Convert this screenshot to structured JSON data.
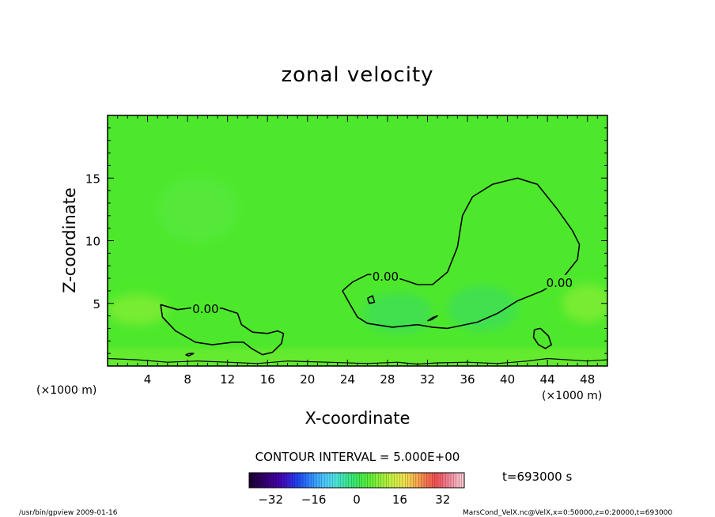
{
  "chart_data": {
    "type": "contour",
    "title": "zonal velocity",
    "xlabel": "X-coordinate",
    "ylabel": "Z-coordinate",
    "x_unit_left": "(×1000 m)",
    "x_unit_right": "(×1000 m)",
    "xlim": [
      0,
      50
    ],
    "ylim": [
      0,
      20
    ],
    "xticks": [
      "4",
      "8",
      "12",
      "16",
      "20",
      "24",
      "28",
      "32",
      "36",
      "40",
      "44",
      "48"
    ],
    "yticks": [
      "5",
      "10",
      "15"
    ],
    "contour_interval_label": "CONTOUR INTERVAL = 5.000E+00",
    "contour_level": "0.00",
    "contour_labels": [
      {
        "text": "0.00",
        "x": 9.8,
        "z": 4.6
      },
      {
        "text": "0.00",
        "x": 27.8,
        "z": 7.2
      },
      {
        "text": "0.00",
        "x": 45.2,
        "z": 6.7
      }
    ],
    "contours": [
      [
        [
          5.3,
          4.9
        ],
        [
          7.0,
          4.5
        ],
        [
          9.0,
          4.7
        ],
        [
          11.5,
          4.6
        ],
        [
          13.0,
          4.2
        ],
        [
          13.4,
          3.3
        ],
        [
          14.5,
          2.7
        ],
        [
          16.0,
          2.6
        ],
        [
          17.0,
          2.8
        ],
        [
          17.6,
          2.6
        ],
        [
          17.4,
          1.8
        ],
        [
          16.5,
          1.1
        ],
        [
          15.5,
          0.9
        ],
        [
          14.4,
          1.4
        ],
        [
          13.6,
          1.9
        ],
        [
          12.5,
          1.9
        ],
        [
          10.5,
          1.7
        ],
        [
          8.8,
          1.9
        ],
        [
          6.8,
          2.8
        ],
        [
          5.5,
          3.9
        ],
        [
          5.3,
          4.9
        ]
      ],
      [
        [
          23.5,
          6.0
        ],
        [
          24.5,
          6.7
        ],
        [
          26.0,
          7.3
        ],
        [
          27.5,
          7.3
        ],
        [
          29.5,
          6.9
        ],
        [
          31.0,
          6.5
        ],
        [
          32.5,
          6.5
        ],
        [
          34.0,
          7.5
        ],
        [
          35.0,
          9.5
        ],
        [
          35.5,
          12.0
        ],
        [
          36.5,
          13.5
        ],
        [
          38.5,
          14.5
        ],
        [
          41.0,
          15.0
        ],
        [
          43.0,
          14.5
        ],
        [
          45.0,
          12.5
        ],
        [
          46.5,
          10.8
        ],
        [
          47.2,
          9.7
        ],
        [
          47.0,
          8.5
        ],
        [
          45.5,
          7.0
        ],
        [
          43.5,
          6.0
        ],
        [
          41.0,
          5.2
        ],
        [
          39.0,
          4.2
        ],
        [
          37.0,
          3.5
        ],
        [
          34.0,
          3.0
        ],
        [
          32.5,
          3.1
        ],
        [
          31.0,
          3.3
        ],
        [
          28.5,
          3.1
        ],
        [
          26.0,
          3.4
        ],
        [
          25.0,
          3.9
        ],
        [
          24.2,
          5.0
        ],
        [
          23.5,
          6.0
        ]
      ],
      [
        [
          42.7,
          2.9
        ],
        [
          43.3,
          3.0
        ],
        [
          44.1,
          2.4
        ],
        [
          44.4,
          1.7
        ],
        [
          43.8,
          1.4
        ],
        [
          43.1,
          1.7
        ],
        [
          42.6,
          2.3
        ],
        [
          42.7,
          2.9
        ]
      ],
      [
        [
          26.0,
          5.4
        ],
        [
          26.5,
          5.6
        ],
        [
          26.7,
          5.1
        ],
        [
          26.2,
          5.0
        ],
        [
          26.0,
          5.4
        ]
      ],
      [
        [
          32.0,
          3.6
        ],
        [
          32.6,
          3.9
        ],
        [
          33.0,
          4.0
        ],
        [
          32.4,
          3.7
        ],
        [
          32.0,
          3.6
        ]
      ],
      [
        [
          7.8,
          0.9
        ],
        [
          8.2,
          1.0
        ],
        [
          8.6,
          1.0
        ],
        [
          8.1,
          0.8
        ],
        [
          7.8,
          0.9
        ]
      ],
      [
        [
          0.0,
          0.6
        ],
        [
          3.0,
          0.5
        ],
        [
          6.0,
          0.3
        ],
        [
          9.0,
          0.4
        ],
        [
          12.0,
          0.3
        ],
        [
          15.0,
          0.2
        ],
        [
          18.0,
          0.4
        ],
        [
          22.0,
          0.3
        ],
        [
          26.0,
          0.2
        ],
        [
          29.0,
          0.3
        ],
        [
          31.0,
          0.15
        ],
        [
          33.0,
          0.25
        ],
        [
          36.0,
          0.3
        ],
        [
          39.0,
          0.2
        ],
        [
          42.0,
          0.4
        ],
        [
          44.0,
          0.6
        ],
        [
          46.0,
          0.5
        ],
        [
          48.0,
          0.4
        ],
        [
          50.0,
          0.5
        ]
      ]
    ],
    "colorbar": {
      "min": -40,
      "max": 40,
      "tick_labels": [
        "-32",
        "-16",
        "0",
        "16",
        "32"
      ],
      "tick_values": [
        -32,
        -16,
        0,
        16,
        32
      ],
      "colors": [
        "#1a0033",
        "#2b005c",
        "#3a007f",
        "#4400a6",
        "#3a1ad0",
        "#2040ee",
        "#2a70ff",
        "#3aa0ff",
        "#4cc8ff",
        "#50e0e8",
        "#40e8b0",
        "#38e878",
        "#44ea4a",
        "#66ee38",
        "#90f03a",
        "#bcf040",
        "#e0ee4a",
        "#f4d850",
        "#f8a850",
        "#f47850",
        "#f05050",
        "#f07080",
        "#f4a0b0",
        "#f8c8d0"
      ]
    },
    "time_label": "t=693000 s",
    "footer_left": "/usr/bin/gpview   2009-01-16",
    "footer_right": "MarsCond_VelX.nc@VelX,x=0:50000,z=0:20000,t=693000",
    "colors": {
      "field_base": "#4de82c",
      "field_faint": "#55e83a",
      "field_positive": "#78ec32",
      "field_negative": "#40e050",
      "axes": "#000000"
    }
  }
}
